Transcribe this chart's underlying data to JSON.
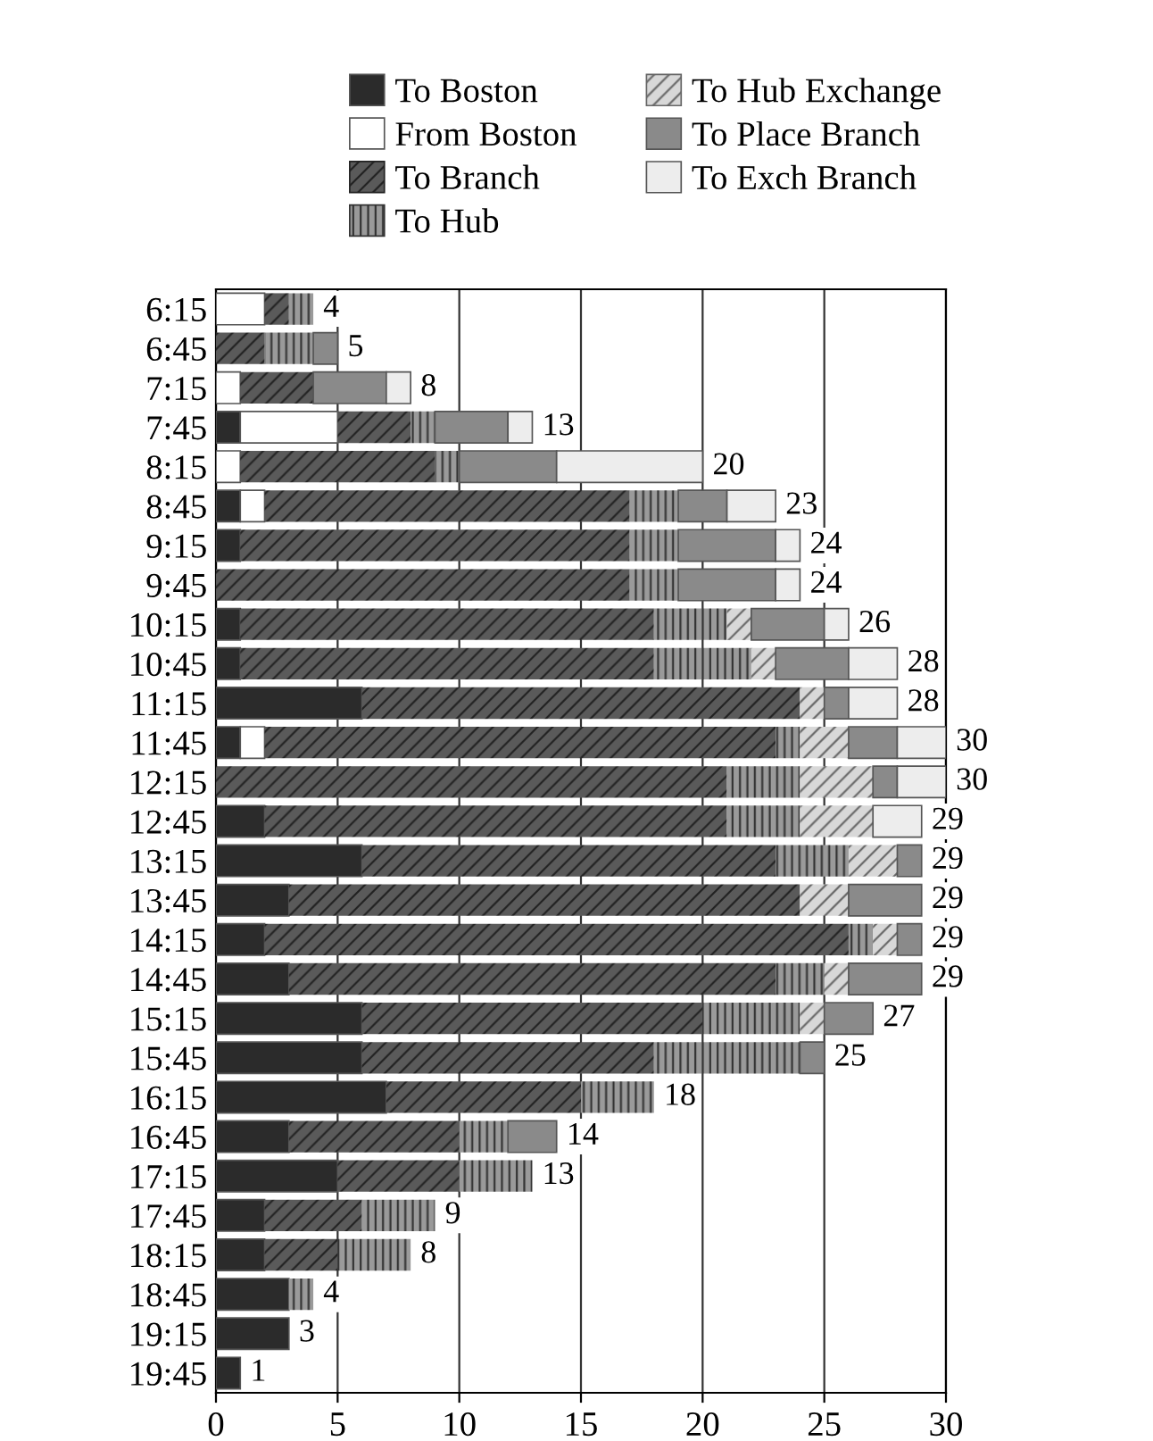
{
  "chart_data": {
    "type": "bar",
    "orientation": "horizontal",
    "stacked": true,
    "categories": [
      "6:15",
      "6:45",
      "7:15",
      "7:45",
      "8:15",
      "8:45",
      "9:15",
      "9:45",
      "10:15",
      "10:45",
      "11:15",
      "11:45",
      "12:15",
      "12:45",
      "13:15",
      "13:45",
      "14:15",
      "14:45",
      "15:15",
      "15:45",
      "16:15",
      "16:45",
      "17:15",
      "17:45",
      "18:15",
      "18:45",
      "19:15",
      "19:45"
    ],
    "series": [
      {
        "name": "To Boston",
        "color": "#2b2b2b",
        "values": [
          0,
          0,
          0,
          1,
          0,
          1,
          1,
          0,
          1,
          1,
          6,
          1,
          0,
          2,
          6,
          3,
          2,
          3,
          6,
          6,
          7,
          3,
          5,
          2,
          2,
          3,
          3,
          1
        ]
      },
      {
        "name": "From Boston",
        "color": "#ffffff",
        "values": [
          2,
          0,
          1,
          4,
          1,
          1,
          0,
          0,
          0,
          0,
          0,
          1,
          0,
          0,
          0,
          0,
          0,
          0,
          0,
          0,
          0,
          0,
          0,
          0,
          0,
          0,
          0,
          0
        ]
      },
      {
        "name": "To Branch",
        "color": "#5a5a5a",
        "values": [
          1,
          2,
          3,
          3,
          8,
          15,
          16,
          17,
          17,
          17,
          18,
          21,
          21,
          19,
          17,
          21,
          24,
          20,
          14,
          12,
          8,
          7,
          5,
          4,
          3,
          0,
          0,
          0
        ]
      },
      {
        "name": "To Hub",
        "color": "#9a9a9a",
        "values": [
          1,
          2,
          0,
          1,
          1,
          2,
          2,
          2,
          3,
          4,
          0,
          1,
          3,
          3,
          3,
          0,
          1,
          2,
          4,
          6,
          3,
          2,
          3,
          3,
          3,
          1,
          0,
          0
        ]
      },
      {
        "name": "To Hub Exchange",
        "color": "#d8d8d8",
        "values": [
          0,
          0,
          0,
          0,
          0,
          0,
          0,
          0,
          1,
          1,
          1,
          2,
          3,
          3,
          2,
          2,
          1,
          1,
          1,
          0,
          0,
          0,
          0,
          0,
          0,
          0,
          0,
          0
        ]
      },
      {
        "name": "To Place Branch",
        "color": "#8a8a8a",
        "values": [
          0,
          1,
          3,
          3,
          4,
          2,
          4,
          4,
          3,
          3,
          1,
          2,
          1,
          0,
          1,
          3,
          1,
          3,
          2,
          1,
          0,
          2,
          0,
          0,
          0,
          0,
          0,
          0
        ]
      },
      {
        "name": "To Exch Branch",
        "color": "#ededed",
        "values": [
          0,
          0,
          1,
          1,
          6,
          2,
          1,
          1,
          1,
          2,
          2,
          2,
          2,
          2,
          0,
          0,
          0,
          0,
          0,
          0,
          0,
          0,
          0,
          0,
          0,
          0,
          0,
          0
        ]
      }
    ],
    "totals": [
      "4",
      "5",
      "8",
      "13",
      "20",
      "23",
      "24",
      "24",
      "26",
      "28",
      "28",
      "30",
      "30",
      "29",
      "29",
      "29",
      "29",
      "29",
      "27",
      "25",
      "18",
      "14",
      "13",
      "9",
      "8",
      "4",
      "3",
      "1"
    ],
    "xlim": [
      0,
      30
    ],
    "xticks": [
      0,
      5,
      10,
      15,
      20,
      25,
      30
    ],
    "grid": "x",
    "legend": "top"
  }
}
